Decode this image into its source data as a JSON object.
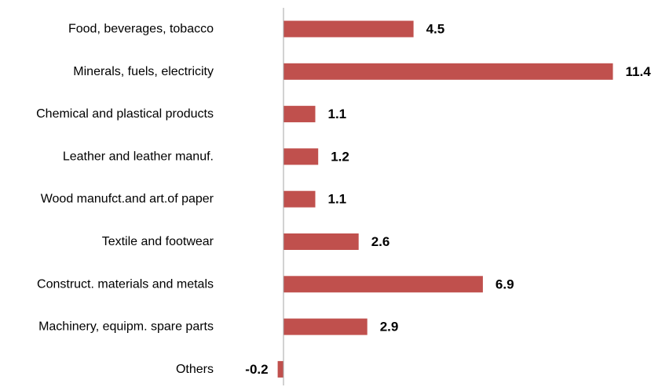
{
  "chart_data": {
    "type": "bar",
    "orientation": "horizontal",
    "title": "",
    "xlabel": "",
    "ylabel": "",
    "categories": [
      "Food, beverages, tobacco",
      "Minerals, fuels, electricity",
      "Chemical and plastical products",
      "Leather and leather manuf.",
      "Wood manufct.and art.of paper",
      "Textile and footwear",
      "Construct. materials and metals",
      "Machinery, equipm. spare parts",
      "Others"
    ],
    "values": [
      4.5,
      11.4,
      1.1,
      1.2,
      1.1,
      2.6,
      6.9,
      2.9,
      -0.2
    ],
    "value_labels": [
      "4.5",
      "11.4",
      "1.1",
      "1.2",
      "1.1",
      "2.6",
      "6.9",
      "2.9",
      "-0.2"
    ],
    "xlim": [
      -0.2,
      11.4
    ],
    "grid": false,
    "legend": "none",
    "bar_color": "#c0504d",
    "axis_color": "#a6a6a6"
  }
}
